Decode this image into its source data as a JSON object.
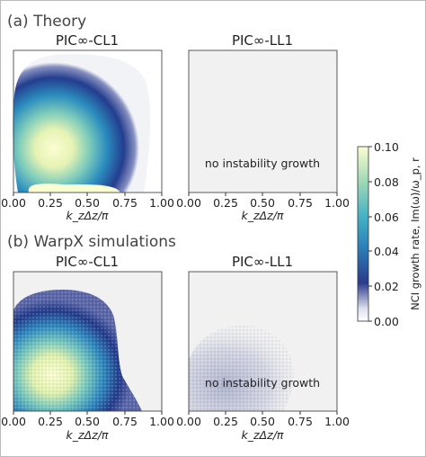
{
  "sections": [
    {
      "label": "(a) Theory"
    },
    {
      "label": "(b) WarpX simulations"
    }
  ],
  "note_text": "no instability growth",
  "chart_data": [
    {
      "type": "heatmap",
      "section": "(a) Theory",
      "title": "PIC∞-CL1",
      "xlabel": "k_zΔz/π",
      "xticks": [
        "0.00",
        "0.25",
        "0.50",
        "0.75",
        "1.00"
      ],
      "xlim": [
        0,
        1
      ],
      "peak_growth_rate": 0.1,
      "peak_location_kzdz": 0.3,
      "extent_kzdz": [
        0.0,
        0.78
      ],
      "grid": false
    },
    {
      "type": "heatmap",
      "section": "(a) Theory",
      "title": "PIC∞-LL1",
      "xlabel": "k_zΔz/π",
      "xticks": [
        "0.00",
        "0.25",
        "0.50",
        "0.75",
        "1.00"
      ],
      "xlim": [
        0,
        1
      ],
      "annotation": "no instability growth",
      "peak_growth_rate": 0.0,
      "grid": false
    },
    {
      "type": "heatmap",
      "section": "(b) WarpX simulations",
      "title": "PIC∞-CL1",
      "xlabel": "k_zΔz/π",
      "xticks": [
        "0.00",
        "0.25",
        "0.50",
        "0.75",
        "1.00"
      ],
      "xlim": [
        0,
        1
      ],
      "peak_growth_rate": 0.1,
      "peak_location_kzdz": 0.25,
      "extent_kzdz": [
        0.0,
        0.85
      ],
      "grid": false
    },
    {
      "type": "heatmap",
      "section": "(b) WarpX simulations",
      "title": "PIC∞-LL1",
      "xlabel": "k_zΔz/π",
      "xticks": [
        "0.00",
        "0.25",
        "0.50",
        "0.75",
        "1.00"
      ],
      "xlim": [
        0,
        1
      ],
      "annotation": "no instability growth",
      "peak_growth_rate": 0.01,
      "extent_kzdz": [
        0.0,
        0.65
      ],
      "grid": false
    }
  ],
  "colorbar": {
    "label": "NCI growth rate, Im(ω)/ω_p, r",
    "ticks": [
      "0.10",
      "0.08",
      "0.06",
      "0.04",
      "0.02",
      "0.00"
    ],
    "range": [
      0,
      0.1
    ],
    "colormap": "YlGnBu-white",
    "colors": [
      "#ffffff",
      "#dfe1ee",
      "#2a3a8c",
      "#2b7fb8",
      "#44b2c4",
      "#9fd9b5",
      "#fbfdd2"
    ]
  }
}
